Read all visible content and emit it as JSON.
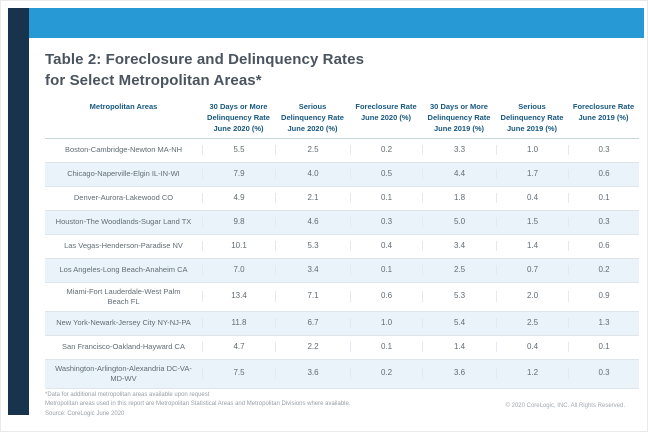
{
  "colors": {
    "accent_blue": "#2799D4",
    "navy_strip": "#17334E",
    "header_text": "#17587F",
    "row_shade": "#E9F3F9",
    "title_text": "#4A545E"
  },
  "title": {
    "line1": "Table 2: Foreclosure and Delinquency Rates",
    "line2": "for Select Metropolitan Areas*"
  },
  "table": {
    "headers": [
      "Metropolitan Areas",
      "30 Days or More\nDelinquency Rate\nJune 2020 (%)",
      "Serious\nDelinquency Rate\nJune 2020 (%)",
      "Foreclosure Rate\nJune 2020 (%)",
      "30 Days or More\nDelinquency Rate\nJune 2019 (%)",
      "Serious\nDelinquency Rate\nJune 2019 (%)",
      "Foreclosure Rate\nJune 2019 (%)"
    ],
    "rows": [
      {
        "area": "Boston-Cambridge-Newton MA-NH",
        "values": [
          "5.5",
          "2.5",
          "0.2",
          "3.3",
          "1.0",
          "0.3"
        ]
      },
      {
        "area": "Chicago-Naperville-Elgin IL-IN-WI",
        "values": [
          "7.9",
          "4.0",
          "0.5",
          "4.4",
          "1.7",
          "0.6"
        ]
      },
      {
        "area": "Denver-Aurora-Lakewood CO",
        "values": [
          "4.9",
          "2.1",
          "0.1",
          "1.8",
          "0.4",
          "0.1"
        ]
      },
      {
        "area": "Houston-The Woodlands-Sugar Land TX",
        "values": [
          "9.8",
          "4.6",
          "0.3",
          "5.0",
          "1.5",
          "0.3"
        ]
      },
      {
        "area": "Las Vegas-Henderson-Paradise NV",
        "values": [
          "10.1",
          "5.3",
          "0.4",
          "3.4",
          "1.4",
          "0.6"
        ]
      },
      {
        "area": "Los Angeles-Long Beach-Anaheim CA",
        "values": [
          "7.0",
          "3.4",
          "0.1",
          "2.5",
          "0.7",
          "0.2"
        ]
      },
      {
        "area": "Miami-Fort Lauderdale-West Palm Beach FL",
        "values": [
          "13.4",
          "7.1",
          "0.6",
          "5.3",
          "2.0",
          "0.9"
        ]
      },
      {
        "area": "New York-Newark-Jersey City NY-NJ-PA",
        "values": [
          "11.8",
          "6.7",
          "1.0",
          "5.4",
          "2.5",
          "1.3"
        ]
      },
      {
        "area": "San Francisco-Oakland-Hayward CA",
        "values": [
          "4.7",
          "2.2",
          "0.1",
          "1.4",
          "0.4",
          "0.1"
        ]
      },
      {
        "area": "Washington-Arlington-Alexandria DC-VA-MD-WV",
        "values": [
          "7.5",
          "3.6",
          "0.2",
          "3.6",
          "1.2",
          "0.3"
        ]
      }
    ]
  },
  "footnotes": {
    "line1": "*Data for additional metropolitan areas available upon request",
    "line2": "Metropolitan areas used in this report are Metropolitan Statistical Areas and Metropolitan Divisions where available.",
    "line3": "Source: CoreLogic June 2020"
  },
  "copyright": "© 2020 CoreLogic, INC. All Rights Reserved."
}
